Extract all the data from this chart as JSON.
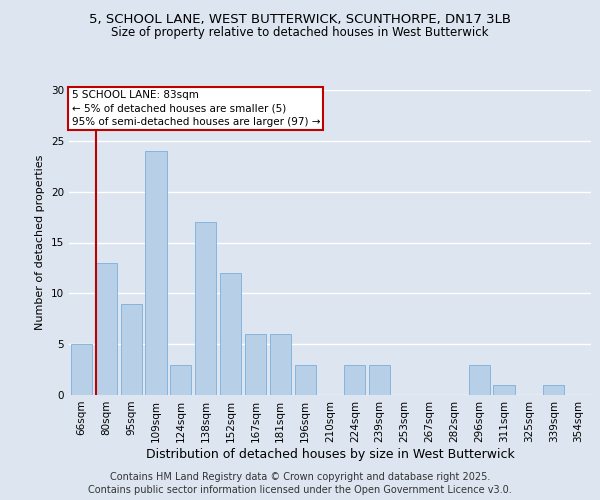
{
  "title1": "5, SCHOOL LANE, WEST BUTTERWICK, SCUNTHORPE, DN17 3LB",
  "title2": "Size of property relative to detached houses in West Butterwick",
  "xlabel": "Distribution of detached houses by size in West Butterwick",
  "ylabel": "Number of detached properties",
  "categories": [
    "66sqm",
    "80sqm",
    "95sqm",
    "109sqm",
    "124sqm",
    "138sqm",
    "152sqm",
    "167sqm",
    "181sqm",
    "196sqm",
    "210sqm",
    "224sqm",
    "239sqm",
    "253sqm",
    "267sqm",
    "282sqm",
    "296sqm",
    "311sqm",
    "325sqm",
    "339sqm",
    "354sqm"
  ],
  "values": [
    5,
    13,
    9,
    24,
    3,
    17,
    12,
    6,
    6,
    3,
    0,
    3,
    3,
    0,
    0,
    0,
    3,
    1,
    0,
    1,
    0
  ],
  "bar_color": "#b8cfe8",
  "bar_edge_color": "#7aaedb",
  "vline_x_index": 1,
  "vline_color": "#c00000",
  "annotation_box_text": "5 SCHOOL LANE: 83sqm\n← 5% of detached houses are smaller (5)\n95% of semi-detached houses are larger (97) →",
  "annotation_box_facecolor": "white",
  "annotation_box_edgecolor": "#c00000",
  "ylim": [
    0,
    30
  ],
  "yticks": [
    0,
    5,
    10,
    15,
    20,
    25,
    30
  ],
  "background_color": "#dde6f0",
  "plot_bg_color": "#dde6f0",
  "grid_color": "#ffffff",
  "footnote": "Contains HM Land Registry data © Crown copyright and database right 2025.\nContains public sector information licensed under the Open Government Licence v3.0.",
  "title1_fontsize": 9.5,
  "title2_fontsize": 8.5,
  "xlabel_fontsize": 9,
  "ylabel_fontsize": 8,
  "tick_fontsize": 7.5,
  "annotation_fontsize": 7.5,
  "footnote_fontsize": 7
}
